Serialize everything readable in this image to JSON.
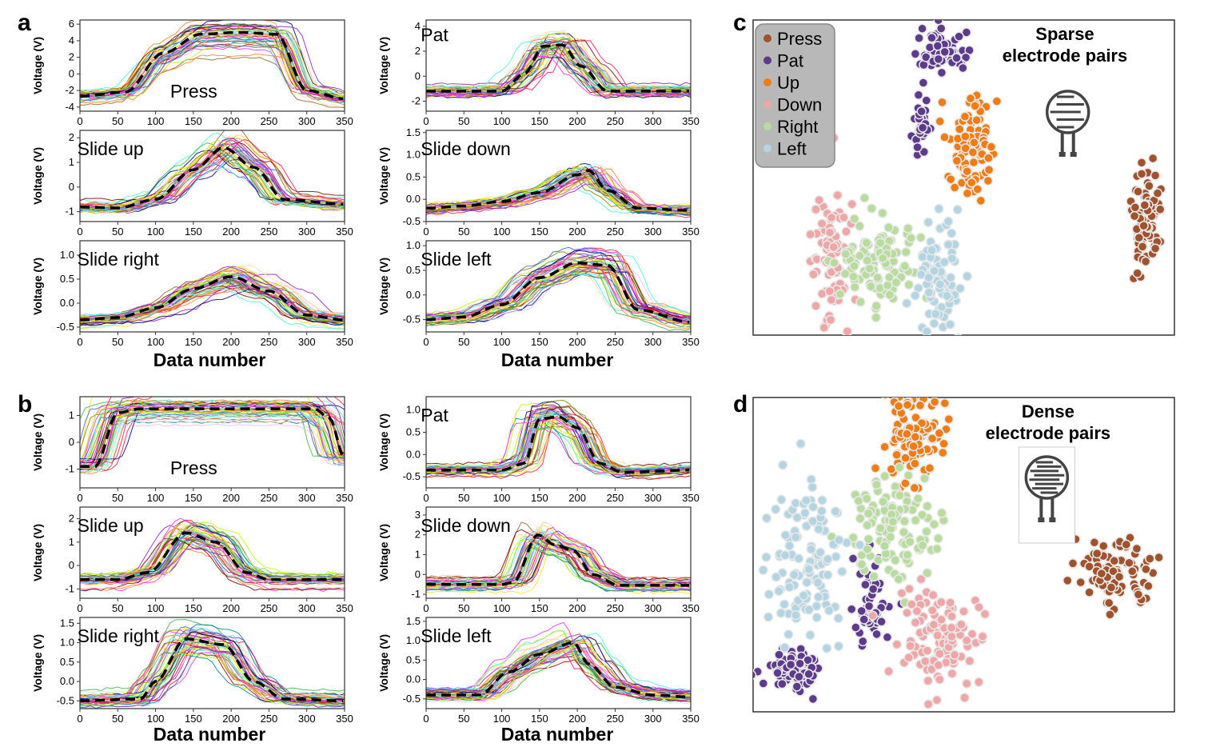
{
  "panel_letters": {
    "a": "a",
    "b": "b",
    "c": "c",
    "d": "d"
  },
  "ylabel": "Voltage (V)",
  "xlabel": "Data number",
  "legend": {
    "entries": [
      {
        "name": "Press",
        "color": "#a0522d"
      },
      {
        "name": "Pat",
        "color": "#5e3a8c"
      },
      {
        "name": "Up",
        "color": "#ef7d14"
      },
      {
        "name": "Down",
        "color": "#f0a6a6"
      },
      {
        "name": "Right",
        "color": "#b7dc9c"
      },
      {
        "name": "Left",
        "color": "#b3d4e3"
      }
    ]
  },
  "chart_data": [
    {
      "type": "line",
      "panel": "a",
      "label": "Press",
      "x": [
        0,
        50,
        100,
        150,
        200,
        250,
        300,
        350
      ],
      "xlim": [
        0,
        350
      ],
      "yticks": [
        6,
        4,
        2,
        0,
        -2,
        -4
      ],
      "ylim": [
        -4.5,
        6.5
      ],
      "mean_x": [
        0,
        60,
        110,
        160,
        210,
        260,
        300,
        350
      ],
      "mean_y": [
        -2.7,
        -2.2,
        2.5,
        4.8,
        5.0,
        4.8,
        -2.0,
        -3.0
      ]
    },
    {
      "type": "line",
      "panel": "a",
      "label": "Pat",
      "x": [
        0,
        50,
        100,
        150,
        200,
        250,
        300,
        350
      ],
      "xlim": [
        0,
        350
      ],
      "yticks": [
        4,
        2,
        0,
        -2
      ],
      "ylim": [
        -2.8,
        4.5
      ],
      "mean_x": [
        0,
        100,
        130,
        155,
        180,
        205,
        240,
        350
      ],
      "mean_y": [
        -1.2,
        -1.2,
        0.2,
        2.4,
        2.5,
        0.8,
        -1.2,
        -1.2
      ]
    },
    {
      "type": "line",
      "panel": "a",
      "label": "Slide up",
      "x": [
        0,
        50,
        100,
        150,
        200,
        250,
        300,
        350
      ],
      "xlim": [
        0,
        350
      ],
      "yticks": [
        2,
        1,
        0,
        -1
      ],
      "ylim": [
        -1.4,
        2.3
      ],
      "mean_x": [
        0,
        50,
        100,
        150,
        190,
        230,
        270,
        350
      ],
      "mean_y": [
        -0.8,
        -0.85,
        -0.5,
        0.7,
        1.6,
        0.8,
        -0.5,
        -0.7
      ]
    },
    {
      "type": "line",
      "panel": "a",
      "label": "Slide down",
      "x": [
        0,
        50,
        100,
        150,
        200,
        250,
        300,
        350
      ],
      "xlim": [
        0,
        350
      ],
      "yticks": [
        1.5,
        1.0,
        0.5,
        0.0,
        -0.5
      ],
      "ylim": [
        -0.5,
        1.55
      ],
      "mean_x": [
        0,
        50,
        100,
        150,
        200,
        215,
        240,
        280,
        350
      ],
      "mean_y": [
        -0.2,
        -0.15,
        -0.05,
        0.15,
        0.55,
        0.65,
        0.2,
        -0.2,
        -0.25
      ]
    },
    {
      "type": "line",
      "panel": "a",
      "label": "Slide right",
      "x": [
        0,
        50,
        100,
        150,
        200,
        250,
        300,
        350
      ],
      "xlim": [
        0,
        350
      ],
      "yticks": [
        1.0,
        0.5,
        0.0,
        -0.5
      ],
      "ylim": [
        -0.6,
        1.3
      ],
      "mean_x": [
        0,
        50,
        100,
        150,
        200,
        250,
        300,
        350
      ],
      "mean_y": [
        -0.35,
        -0.3,
        -0.1,
        0.3,
        0.55,
        0.25,
        -0.25,
        -0.35
      ]
    },
    {
      "type": "line",
      "panel": "a",
      "label": "Slide left",
      "x": [
        0,
        50,
        100,
        150,
        200,
        250,
        300,
        350
      ],
      "xlim": [
        0,
        350
      ],
      "yticks": [
        1.0,
        0.5,
        0.0,
        -0.5
      ],
      "ylim": [
        -0.75,
        1.1
      ],
      "mean_x": [
        0,
        50,
        100,
        150,
        200,
        240,
        280,
        350
      ],
      "mean_y": [
        -0.5,
        -0.45,
        -0.2,
        0.35,
        0.65,
        0.6,
        -0.3,
        -0.55
      ]
    },
    {
      "type": "line",
      "panel": "b",
      "label": "Press",
      "x": [
        0,
        50,
        100,
        150,
        200,
        250,
        300,
        350
      ],
      "xlim": [
        0,
        350
      ],
      "yticks": [
        1,
        0,
        -1
      ],
      "ylim": [
        -1.7,
        1.7
      ],
      "mean_x": [
        0,
        20,
        50,
        80,
        150,
        250,
        310,
        330,
        350
      ],
      "mean_y": [
        -0.9,
        -0.9,
        1.1,
        1.25,
        1.25,
        1.25,
        1.25,
        0.9,
        -0.6
      ]
    },
    {
      "type": "line",
      "panel": "b",
      "label": "Pat",
      "x": [
        0,
        50,
        100,
        150,
        200,
        250,
        300,
        350
      ],
      "xlim": [
        0,
        350
      ],
      "yticks": [
        1.0,
        0.5,
        0.0,
        -0.5
      ],
      "ylim": [
        -0.75,
        1.3
      ],
      "mean_x": [
        0,
        100,
        130,
        150,
        175,
        200,
        230,
        260,
        350
      ],
      "mean_y": [
        -0.35,
        -0.35,
        -0.2,
        0.8,
        0.85,
        0.6,
        -0.2,
        -0.4,
        -0.35
      ]
    },
    {
      "type": "line",
      "panel": "b",
      "label": "Slide up",
      "x": [
        0,
        50,
        100,
        150,
        200,
        250,
        300,
        350
      ],
      "xlim": [
        0,
        350
      ],
      "yticks": [
        2,
        1,
        0,
        -1
      ],
      "ylim": [
        -1.4,
        2.5
      ],
      "mean_x": [
        0,
        50,
        90,
        140,
        180,
        220,
        250,
        350
      ],
      "mean_y": [
        -0.6,
        -0.6,
        -0.3,
        1.4,
        1.0,
        -0.3,
        -0.6,
        -0.6
      ]
    },
    {
      "type": "line",
      "panel": "b",
      "label": "Slide down",
      "x": [
        0,
        50,
        100,
        150,
        200,
        250,
        300,
        350
      ],
      "xlim": [
        0,
        350
      ],
      "yticks": [
        3,
        2,
        1,
        0,
        -1
      ],
      "ylim": [
        -1.2,
        3.4
      ],
      "mean_x": [
        0,
        100,
        115,
        148,
        170,
        195,
        220,
        255,
        350
      ],
      "mean_y": [
        -0.5,
        -0.5,
        -0.4,
        2.0,
        1.5,
        1.2,
        0.0,
        -0.55,
        -0.55
      ]
    },
    {
      "type": "line",
      "panel": "b",
      "label": "Slide right",
      "x": [
        0,
        50,
        100,
        150,
        200,
        250,
        300,
        350
      ],
      "xlim": [
        0,
        350
      ],
      "yticks": [
        1.5,
        1.0,
        0.5,
        0.0,
        -0.5
      ],
      "ylim": [
        -0.7,
        1.65
      ],
      "mean_x": [
        0,
        80,
        100,
        140,
        190,
        230,
        270,
        350
      ],
      "mean_y": [
        -0.5,
        -0.45,
        0.0,
        1.1,
        0.95,
        0.0,
        -0.45,
        -0.5
      ]
    },
    {
      "type": "line",
      "panel": "b",
      "label": "Slide left",
      "x": [
        0,
        50,
        100,
        150,
        200,
        250,
        300,
        350
      ],
      "xlim": [
        0,
        350
      ],
      "yticks": [
        1.5,
        1.0,
        0.5,
        0.0,
        -0.5
      ],
      "ylim": [
        -0.75,
        1.6
      ],
      "mean_x": [
        0,
        70,
        110,
        150,
        195,
        215,
        250,
        300,
        350
      ],
      "mean_y": [
        -0.4,
        -0.4,
        0.2,
        0.65,
        0.95,
        0.4,
        -0.2,
        -0.4,
        -0.45
      ]
    },
    {
      "type": "scatter",
      "panel": "c",
      "title": "Sparse\nelectrode pairs",
      "clusters": [
        {
          "name": "Press",
          "cx": 0.93,
          "cy": 0.62,
          "sx": 0.018,
          "sy": 0.07,
          "n": 90
        },
        {
          "name": "Pat",
          "cx": 0.45,
          "cy": 0.1,
          "sx": 0.03,
          "sy": 0.03,
          "n": 70
        },
        {
          "name": "Pat",
          "cx": 0.4,
          "cy": 0.33,
          "sx": 0.01,
          "sy": 0.05,
          "n": 30
        },
        {
          "name": "Up",
          "cx": 0.52,
          "cy": 0.42,
          "sx": 0.03,
          "sy": 0.09,
          "n": 90
        },
        {
          "name": "Down",
          "cx": 0.19,
          "cy": 0.78,
          "sx": 0.025,
          "sy": 0.12,
          "n": 90
        },
        {
          "name": "Right",
          "cx": 0.3,
          "cy": 0.76,
          "sx": 0.045,
          "sy": 0.07,
          "n": 110
        },
        {
          "name": "Left",
          "cx": 0.44,
          "cy": 0.82,
          "sx": 0.025,
          "sy": 0.09,
          "n": 90
        }
      ]
    },
    {
      "type": "scatter",
      "panel": "d",
      "title": "Dense\nelectrode pairs",
      "clusters": [
        {
          "name": "Press",
          "cx": 0.86,
          "cy": 0.55,
          "sx": 0.045,
          "sy": 0.05,
          "n": 90
        },
        {
          "name": "Pat",
          "cx": 0.1,
          "cy": 0.86,
          "sx": 0.035,
          "sy": 0.03,
          "n": 80
        },
        {
          "name": "Pat",
          "cx": 0.28,
          "cy": 0.65,
          "sx": 0.02,
          "sy": 0.08,
          "n": 50
        },
        {
          "name": "Up",
          "cx": 0.38,
          "cy": 0.12,
          "sx": 0.04,
          "sy": 0.07,
          "n": 100
        },
        {
          "name": "Right",
          "cx": 0.34,
          "cy": 0.42,
          "sx": 0.05,
          "sy": 0.09,
          "n": 110
        },
        {
          "name": "Left",
          "cx": 0.13,
          "cy": 0.5,
          "sx": 0.05,
          "sy": 0.12,
          "n": 120
        },
        {
          "name": "Down",
          "cx": 0.44,
          "cy": 0.77,
          "sx": 0.05,
          "sy": 0.08,
          "n": 100
        }
      ]
    }
  ]
}
